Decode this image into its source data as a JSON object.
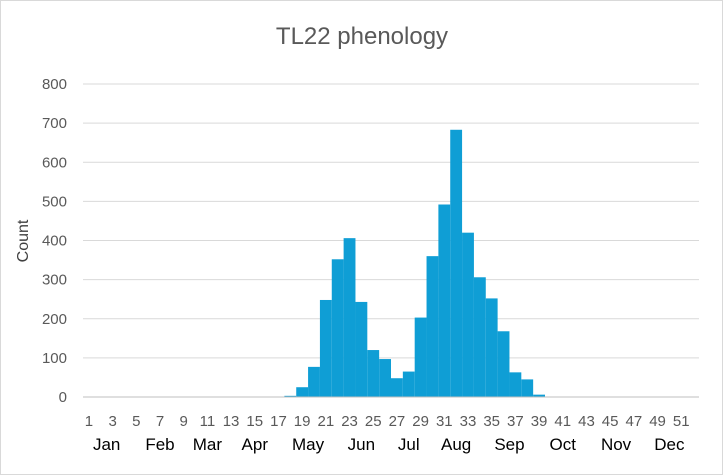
{
  "chart_data": {
    "type": "bar",
    "title": "TL22 phenology",
    "xlabel": "",
    "ylabel": "Count",
    "ylim": [
      0,
      800
    ],
    "yticks": [
      0,
      100,
      200,
      300,
      400,
      500,
      600,
      700,
      800
    ],
    "grid": true,
    "legend": "none",
    "colors": {
      "bar": "#0f9ed5",
      "grid": "#d9d9d9",
      "axis": "#bfbfbf"
    },
    "categories": [
      1,
      2,
      3,
      4,
      5,
      6,
      7,
      8,
      9,
      10,
      11,
      12,
      13,
      14,
      15,
      16,
      17,
      18,
      19,
      20,
      21,
      22,
      23,
      24,
      25,
      26,
      27,
      28,
      29,
      30,
      31,
      32,
      33,
      34,
      35,
      36,
      37,
      38,
      39,
      40,
      41,
      42,
      43,
      44,
      45,
      46,
      47,
      48,
      49,
      50,
      51,
      52
    ],
    "x_tick_labels": [
      "1",
      "3",
      "5",
      "7",
      "9",
      "11",
      "13",
      "15",
      "17",
      "19",
      "21",
      "23",
      "25",
      "27",
      "29",
      "31",
      "33",
      "35",
      "37",
      "39",
      "41",
      "43",
      "45",
      "47",
      "49",
      "51"
    ],
    "months": [
      {
        "label": "Jan",
        "at_week": 2.5
      },
      {
        "label": "Feb",
        "at_week": 7
      },
      {
        "label": "Mar",
        "at_week": 11
      },
      {
        "label": "Apr",
        "at_week": 15
      },
      {
        "label": "May",
        "at_week": 19.5
      },
      {
        "label": "Jun",
        "at_week": 24
      },
      {
        "label": "Jul",
        "at_week": 28
      },
      {
        "label": "Aug",
        "at_week": 32
      },
      {
        "label": "Sep",
        "at_week": 36.5
      },
      {
        "label": "Oct",
        "at_week": 41
      },
      {
        "label": "Nov",
        "at_week": 45.5
      },
      {
        "label": "Dec",
        "at_week": 50
      }
    ],
    "values": [
      0,
      0,
      0,
      0,
      0,
      0,
      0,
      0,
      0,
      0,
      0,
      0,
      0,
      0,
      0,
      0,
      0,
      3,
      25,
      77,
      248,
      352,
      406,
      243,
      120,
      97,
      48,
      65,
      203,
      360,
      492,
      683,
      420,
      306,
      252,
      168,
      63,
      45,
      6,
      0,
      0,
      0,
      0,
      0,
      0,
      0,
      0,
      0,
      0,
      0,
      0,
      0
    ]
  }
}
